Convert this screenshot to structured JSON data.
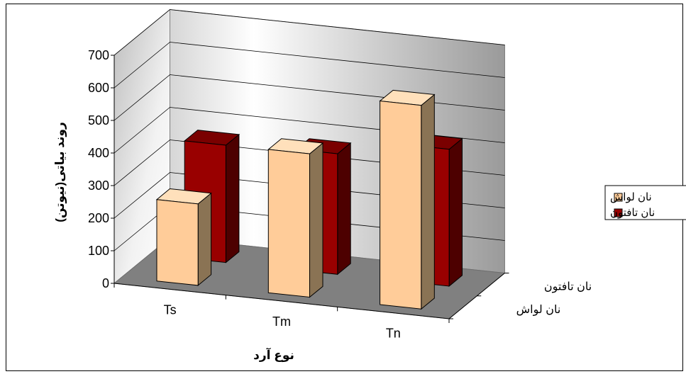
{
  "chart_data": {
    "type": "bar",
    "categories": [
      "Ts",
      "Tm",
      "Tn"
    ],
    "series": [
      {
        "name": "نان لواش",
        "values": [
          250,
          440,
          625
        ]
      },
      {
        "name": "نان تافتون",
        "values": [
          360,
          370,
          420
        ]
      }
    ],
    "ylabel": "روند بیاتی(نیوتن)",
    "xlabel": "نوع آرد",
    "ylim": [
      0,
      700
    ],
    "yticks": [
      0,
      100,
      200,
      300,
      400,
      500,
      600,
      700
    ],
    "depth_labels": [
      "نان لواش",
      "نان تافتون"
    ],
    "grid": true,
    "legend": "right",
    "colors": {
      "series": [
        "#FFCC99",
        "#990000"
      ],
      "series_side": [
        "#8A7354",
        "#4D0000"
      ],
      "series_top": [
        "#FFE0BB",
        "#7A0000"
      ],
      "floor": "#808080",
      "wall_light": "#ffffff",
      "wall_dark": "#a0a0a0"
    }
  }
}
